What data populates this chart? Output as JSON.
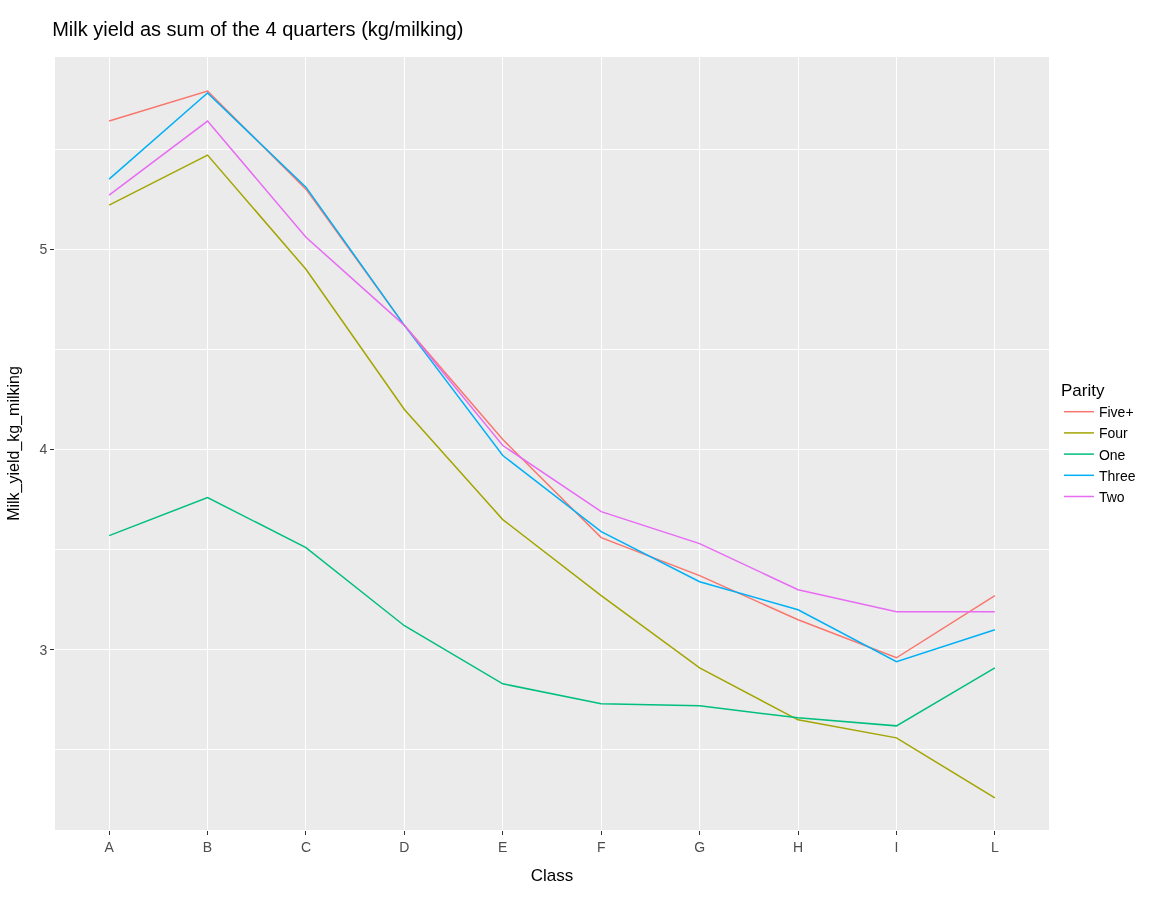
{
  "chart_data": {
    "type": "line",
    "title": "Milk yield as sum of the 4 quarters (kg/milking)",
    "xlabel": "Class",
    "ylabel": "Milk_yield_kg_milking",
    "legend_title": "Parity",
    "categories": [
      "A",
      "B",
      "C",
      "D",
      "E",
      "F",
      "G",
      "H",
      "I",
      "L"
    ],
    "series": [
      {
        "name": "Five+",
        "color": "#f8766d",
        "values": [
          5.64,
          5.79,
          5.3,
          4.62,
          4.05,
          3.56,
          3.37,
          3.15,
          2.96,
          3.27
        ]
      },
      {
        "name": "Four",
        "color": "#a3a500",
        "values": [
          5.22,
          5.47,
          4.9,
          4.2,
          3.65,
          3.27,
          2.91,
          2.65,
          2.56,
          2.26
        ]
      },
      {
        "name": "One",
        "color": "#00bf7d",
        "values": [
          3.57,
          3.76,
          3.51,
          3.12,
          2.83,
          2.73,
          2.72,
          2.66,
          2.62,
          2.91
        ]
      },
      {
        "name": "Three",
        "color": "#00b0f6",
        "values": [
          5.35,
          5.78,
          5.31,
          4.62,
          3.97,
          3.59,
          3.34,
          3.2,
          2.94,
          3.1
        ]
      },
      {
        "name": "Two",
        "color": "#e76bf3",
        "values": [
          5.27,
          5.64,
          5.06,
          4.62,
          4.02,
          3.69,
          3.53,
          3.3,
          3.19,
          3.19
        ]
      }
    ],
    "ylim": [
      2.1,
      5.96
    ],
    "yticks": [
      3,
      4,
      5
    ],
    "grid": true,
    "legend": "right",
    "marker": "none",
    "line_style": "solid"
  }
}
